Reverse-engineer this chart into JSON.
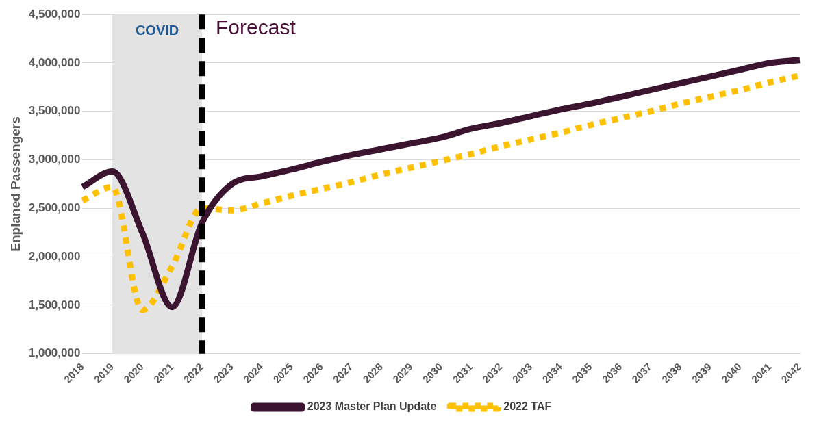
{
  "chart_data": {
    "type": "line",
    "ylabel": "Enplaned Passengers",
    "categories": [
      "2018",
      "2019",
      "2020",
      "2021",
      "2022",
      "2023",
      "2024",
      "2025",
      "2026",
      "2027",
      "2028",
      "2029",
      "2030",
      "2031",
      "2032",
      "2033",
      "2034",
      "2035",
      "2036",
      "2037",
      "2038",
      "2039",
      "2040",
      "2041",
      "2042"
    ],
    "series": [
      {
        "name": "2023 Master Plan Update",
        "color": "#3b1530",
        "line_style": "solid",
        "values": [
          2720000,
          2880000,
          2250000,
          1480000,
          2350000,
          2750000,
          2830000,
          2900000,
          2980000,
          3050000,
          3110000,
          3170000,
          3230000,
          3320000,
          3380000,
          3450000,
          3520000,
          3580000,
          3650000,
          3720000,
          3790000,
          3860000,
          3930000,
          4000000,
          4030000
        ]
      },
      {
        "name": "2022 TAF",
        "color": "#ffc000",
        "line_style": "dotted",
        "values": [
          2580000,
          2720000,
          1450000,
          1900000,
          2500000,
          2480000,
          2550000,
          2630000,
          2700000,
          2770000,
          2850000,
          2920000,
          2990000,
          3060000,
          3140000,
          3210000,
          3280000,
          3360000,
          3430000,
          3500000,
          3580000,
          3650000,
          3720000,
          3800000,
          3870000
        ]
      }
    ],
    "ylim": [
      1000000,
      4500000
    ],
    "yticks": [
      {
        "value": 1000000,
        "label": "1,000,000"
      },
      {
        "value": 1500000,
        "label": "1,500,000"
      },
      {
        "value": 2000000,
        "label": "2,000,000"
      },
      {
        "value": 2500000,
        "label": "2,500,000"
      },
      {
        "value": 3000000,
        "label": "3,000,000"
      },
      {
        "value": 3500000,
        "label": "3,500,000"
      },
      {
        "value": 4000000,
        "label": "4,000,000"
      },
      {
        "value": 4500000,
        "label": "4,500,000"
      }
    ],
    "grid": "y",
    "legend": "bottom",
    "marker": "none",
    "bands": [
      {
        "axis": "x",
        "from": "2019",
        "to": "2022",
        "label": "COVID",
        "color": "#e3e3e3"
      }
    ],
    "ref_lines": [
      {
        "axis": "x",
        "value": "2022",
        "label": "Forecast",
        "color": "#000000",
        "line_style": "dashed"
      }
    ]
  }
}
